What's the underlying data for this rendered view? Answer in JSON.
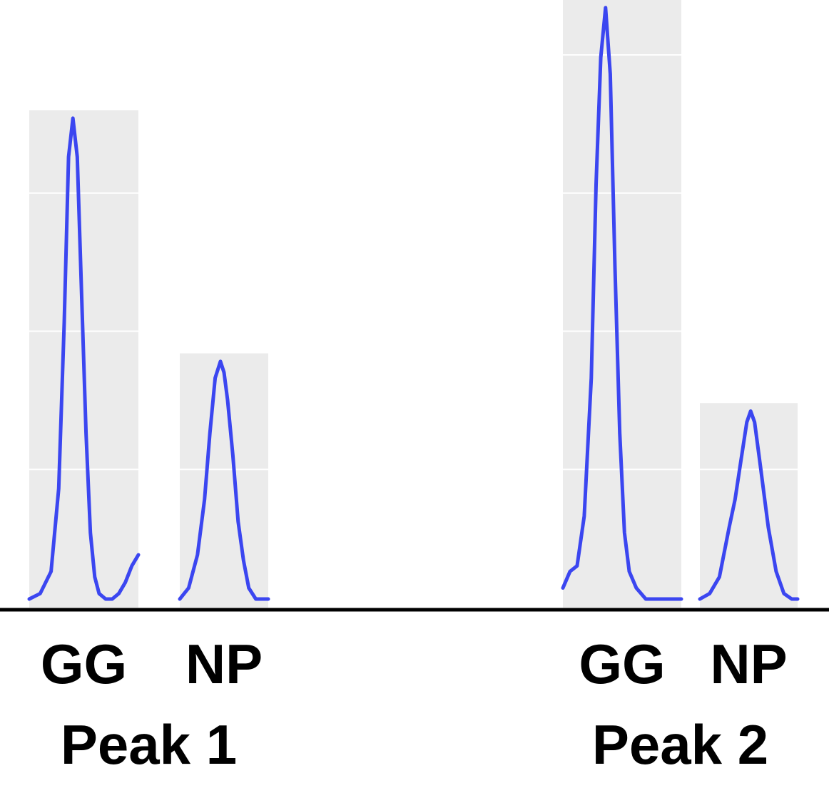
{
  "chart_data": {
    "type": "line",
    "description_kind": "density-peaks",
    "groups": [
      {
        "label": "Peak 1",
        "panels": [
          {
            "label": "GG",
            "peak_height": 0.87,
            "panel_height": 0.9,
            "grid_levels": [
              0.25,
              0.5,
              0.75
            ],
            "x": [
              0.0,
              0.1,
              0.2,
              0.27,
              0.32,
              0.36,
              0.4,
              0.44,
              0.48,
              0.52,
              0.56,
              0.6,
              0.64,
              0.7,
              0.76,
              0.82,
              0.88,
              0.94,
              1.0
            ],
            "y": [
              0.0,
              0.01,
              0.05,
              0.2,
              0.5,
              0.8,
              0.87,
              0.8,
              0.55,
              0.3,
              0.12,
              0.04,
              0.01,
              0.0,
              0.0,
              0.01,
              0.03,
              0.06,
              0.08
            ]
          },
          {
            "label": "NP",
            "peak_height": 0.43,
            "panel_height": 0.46,
            "grid_levels": [
              0.25
            ],
            "x": [
              0.0,
              0.1,
              0.2,
              0.28,
              0.34,
              0.4,
              0.46,
              0.5,
              0.54,
              0.6,
              0.66,
              0.72,
              0.78,
              0.86,
              0.94,
              1.0
            ],
            "y": [
              0.0,
              0.02,
              0.08,
              0.18,
              0.3,
              0.4,
              0.43,
              0.41,
              0.36,
              0.26,
              0.14,
              0.07,
              0.02,
              0.0,
              0.0,
              0.0
            ]
          }
        ]
      },
      {
        "label": "Peak 2",
        "panels": [
          {
            "label": "GG",
            "peak_height": 1.07,
            "panel_height": 1.1,
            "grid_levels": [
              0.25,
              0.5,
              0.75,
              1.0
            ],
            "x": [
              0.0,
              0.06,
              0.12,
              0.18,
              0.24,
              0.28,
              0.32,
              0.36,
              0.4,
              0.44,
              0.48,
              0.52,
              0.56,
              0.62,
              0.7,
              0.78,
              0.86,
              0.94,
              1.0
            ],
            "y": [
              0.02,
              0.05,
              0.06,
              0.15,
              0.4,
              0.75,
              0.98,
              1.07,
              0.95,
              0.6,
              0.3,
              0.12,
              0.05,
              0.02,
              0.0,
              0.0,
              0.0,
              0.0,
              0.0
            ]
          },
          {
            "label": "NP",
            "peak_height": 0.34,
            "panel_height": 0.37,
            "grid_levels": [
              0.25
            ],
            "x": [
              0.0,
              0.1,
              0.2,
              0.3,
              0.36,
              0.42,
              0.48,
              0.52,
              0.56,
              0.62,
              0.7,
              0.78,
              0.86,
              0.94,
              1.0
            ],
            "y": [
              0.0,
              0.01,
              0.04,
              0.13,
              0.18,
              0.25,
              0.32,
              0.34,
              0.32,
              0.24,
              0.13,
              0.05,
              0.01,
              0.0,
              0.0
            ]
          }
        ]
      }
    ],
    "ylim": [
      0,
      1.1
    ],
    "grid": true,
    "colors": {
      "line": "#3b46f0",
      "panel_background": "#ebebeb",
      "grid": "#ffffff",
      "baseline": "#000000"
    }
  }
}
